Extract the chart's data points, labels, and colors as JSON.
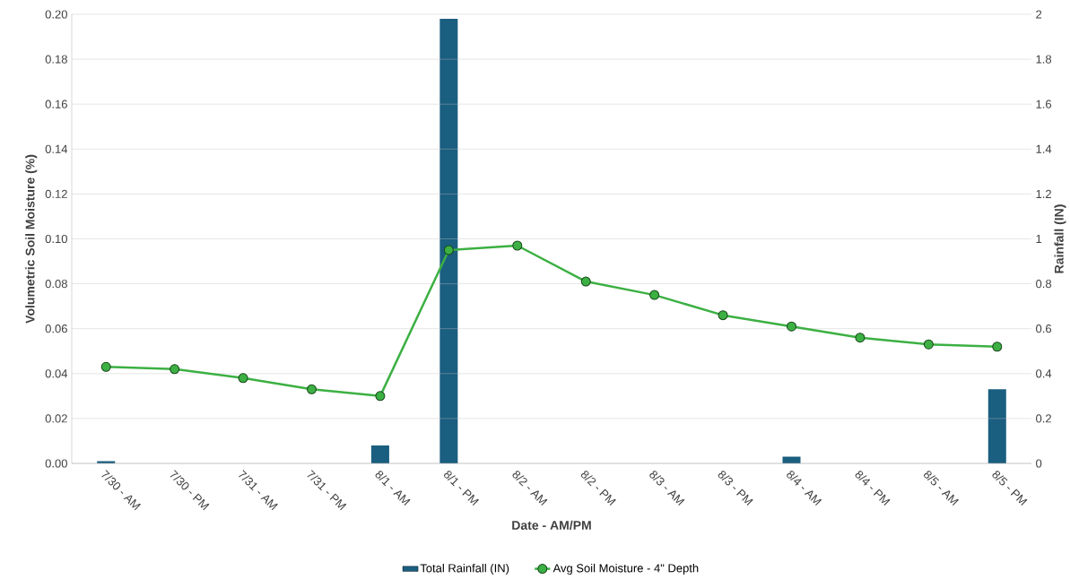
{
  "chart_data": {
    "type": "bar",
    "categories": [
      "7/30 - AM",
      "7/30 - PM",
      "7/31 - AM",
      "7/31 - PM",
      "8/1 - AM",
      "8/1 - PM",
      "8/2 - AM",
      "8/2 - PM",
      "8/3 - AM",
      "8/3 - PM",
      "8/4 - AM",
      "8/4 - PM",
      "8/5 - AM",
      "8/5 - PM"
    ],
    "xlabel": "Date - AM/PM",
    "ylabel": "Volumetric Soil Moisture (%)",
    "y2label": "Rainfall (IN)",
    "ylim": [
      0,
      0.2
    ],
    "yticks": [
      {
        "value": 0,
        "label": "0.00"
      },
      {
        "value": 0.02,
        "label": "0.02"
      },
      {
        "value": 0.04,
        "label": "0.04"
      },
      {
        "value": 0.06,
        "label": "0.06"
      },
      {
        "value": 0.08,
        "label": "0.08"
      },
      {
        "value": 0.1,
        "label": "0.10"
      },
      {
        "value": 0.12,
        "label": "0.12"
      },
      {
        "value": 0.14,
        "label": "0.14"
      },
      {
        "value": 0.16,
        "label": "0.16"
      },
      {
        "value": 0.18,
        "label": "0.18"
      },
      {
        "value": 0.2,
        "label": "0.20"
      }
    ],
    "y2lim": [
      0,
      2
    ],
    "y2ticks": [
      0,
      0.2,
      0.4,
      0.6,
      0.8,
      1,
      1.2,
      1.4,
      1.6,
      1.8,
      2
    ],
    "grid": "y",
    "legend": "bottom",
    "series": [
      {
        "name": "Total Rainfall (IN)",
        "axis": "y2",
        "color": "#1a5e80",
        "values": [
          0.01,
          0,
          0,
          0,
          0.08,
          1.98,
          0,
          0,
          0,
          0,
          0.03,
          0,
          0,
          0.33
        ]
      },
      {
        "name": "Avg Soil Moisture - 4\" Depth",
        "type": "line",
        "color": "#3cb043",
        "marker": "circle",
        "values": [
          0.043,
          0.042,
          0.038,
          0.033,
          0.03,
          0.095,
          0.097,
          0.081,
          0.075,
          0.066,
          0.061,
          0.056,
          0.053,
          0.052
        ]
      }
    ]
  }
}
